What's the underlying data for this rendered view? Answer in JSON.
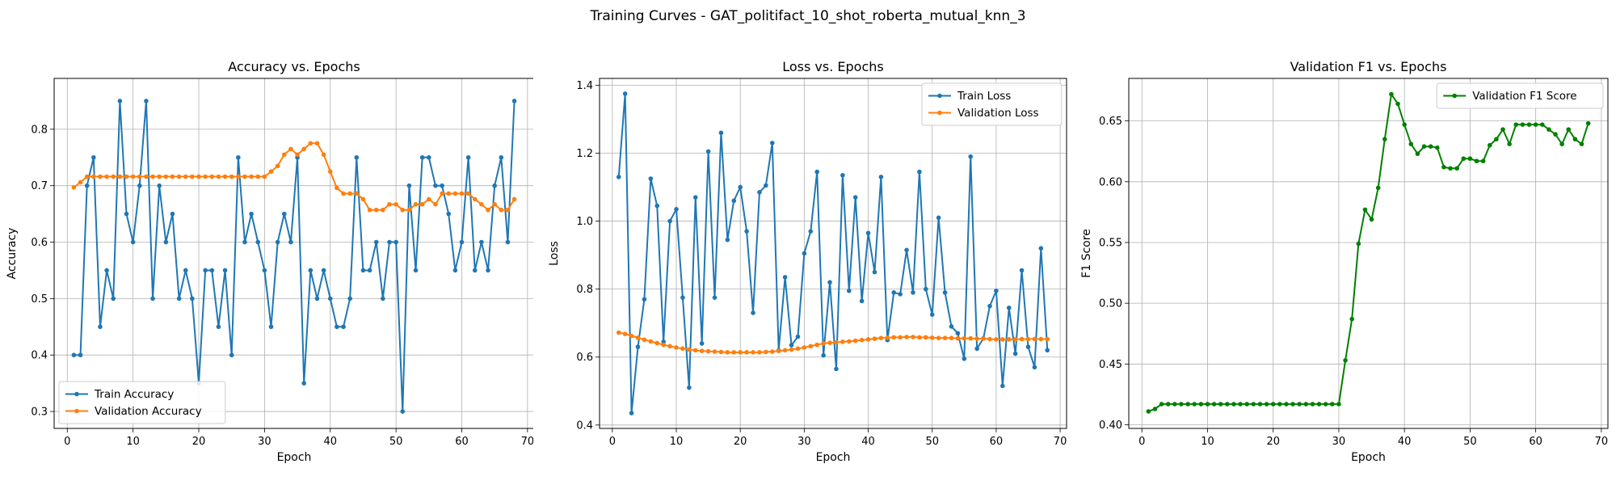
{
  "figure_title": "Training Curves - GAT_politifact_10_shot_roberta_mutual_knn_3",
  "chart_data": [
    {
      "type": "line",
      "title": "Accuracy vs. Epochs",
      "xlabel": "Epoch",
      "ylabel": "Accuracy",
      "xlim": [
        -2,
        71
      ],
      "ylim": [
        0.27,
        0.89
      ],
      "xticks": [
        0,
        10,
        20,
        30,
        40,
        50,
        60,
        70
      ],
      "yticks": [
        0.3,
        0.4,
        0.5,
        0.6,
        0.7,
        0.8
      ],
      "tick_decimals": 1,
      "grid": true,
      "legend_position": "lower-left",
      "x": [
        1,
        2,
        3,
        4,
        5,
        6,
        7,
        8,
        9,
        10,
        11,
        12,
        13,
        14,
        15,
        16,
        17,
        18,
        19,
        20,
        21,
        22,
        23,
        24,
        25,
        26,
        27,
        28,
        29,
        30,
        31,
        32,
        33,
        34,
        35,
        36,
        37,
        38,
        39,
        40,
        41,
        42,
        43,
        44,
        45,
        46,
        47,
        48,
        49,
        50,
        51,
        52,
        53,
        54,
        55,
        56,
        57,
        58,
        59,
        60,
        61,
        62,
        63,
        64,
        65,
        66,
        67,
        68
      ],
      "series": [
        {
          "name": "Train Accuracy",
          "color": "#1f77b4",
          "values": [
            0.4,
            0.4,
            0.7,
            0.75,
            0.45,
            0.55,
            0.5,
            0.85,
            0.65,
            0.6,
            0.7,
            0.85,
            0.5,
            0.7,
            0.6,
            0.65,
            0.5,
            0.55,
            0.5,
            0.35,
            0.55,
            0.55,
            0.45,
            0.55,
            0.4,
            0.75,
            0.6,
            0.65,
            0.6,
            0.55,
            0.45,
            0.6,
            0.65,
            0.6,
            0.75,
            0.35,
            0.55,
            0.5,
            0.55,
            0.5,
            0.45,
            0.45,
            0.5,
            0.75,
            0.55,
            0.55,
            0.6,
            0.5,
            0.6,
            0.6,
            0.3,
            0.7,
            0.55,
            0.75,
            0.75,
            0.7,
            0.7,
            0.65,
            0.55,
            0.6,
            0.75,
            0.55,
            0.6,
            0.55,
            0.7,
            0.75,
            0.6,
            0.85
          ]
        },
        {
          "name": "Validation Accuracy",
          "color": "#ff7f0e",
          "values": [
            0.697,
            0.706,
            0.716,
            0.716,
            0.716,
            0.716,
            0.716,
            0.716,
            0.716,
            0.716,
            0.716,
            0.716,
            0.716,
            0.716,
            0.716,
            0.716,
            0.716,
            0.716,
            0.716,
            0.716,
            0.716,
            0.716,
            0.716,
            0.716,
            0.716,
            0.716,
            0.716,
            0.716,
            0.716,
            0.716,
            0.725,
            0.735,
            0.755,
            0.765,
            0.755,
            0.765,
            0.775,
            0.775,
            0.755,
            0.725,
            0.696,
            0.686,
            0.686,
            0.686,
            0.676,
            0.657,
            0.657,
            0.657,
            0.667,
            0.667,
            0.657,
            0.657,
            0.667,
            0.667,
            0.676,
            0.667,
            0.686,
            0.686,
            0.686,
            0.686,
            0.686,
            0.676,
            0.667,
            0.657,
            0.667,
            0.657,
            0.657,
            0.676
          ]
        }
      ]
    },
    {
      "type": "line",
      "title": "Loss vs. Epochs",
      "xlabel": "Epoch",
      "ylabel": "Loss",
      "xlim": [
        -2,
        71
      ],
      "ylim": [
        0.39,
        1.42
      ],
      "xticks": [
        0,
        10,
        20,
        30,
        40,
        50,
        60,
        70
      ],
      "yticks": [
        0.4,
        0.6,
        0.8,
        1.0,
        1.2,
        1.4
      ],
      "tick_decimals": 1,
      "grid": true,
      "legend_position": "upper-right",
      "x": [
        1,
        2,
        3,
        4,
        5,
        6,
        7,
        8,
        9,
        10,
        11,
        12,
        13,
        14,
        15,
        16,
        17,
        18,
        19,
        20,
        21,
        22,
        23,
        24,
        25,
        26,
        27,
        28,
        29,
        30,
        31,
        32,
        33,
        34,
        35,
        36,
        37,
        38,
        39,
        40,
        41,
        42,
        43,
        44,
        45,
        46,
        47,
        48,
        49,
        50,
        51,
        52,
        53,
        54,
        55,
        56,
        57,
        58,
        59,
        60,
        61,
        62,
        63,
        64,
        65,
        66,
        67,
        68
      ],
      "series": [
        {
          "name": "Train Loss",
          "color": "#1f77b4",
          "values": [
            1.13,
            1.375,
            0.435,
            0.63,
            0.77,
            1.125,
            1.045,
            0.645,
            1.0,
            1.035,
            0.775,
            0.51,
            1.07,
            0.64,
            1.205,
            0.775,
            1.26,
            0.945,
            1.06,
            1.1,
            0.97,
            0.73,
            1.085,
            1.105,
            1.23,
            0.62,
            0.835,
            0.635,
            0.66,
            0.905,
            0.97,
            1.145,
            0.605,
            0.82,
            0.565,
            1.135,
            0.795,
            1.07,
            0.765,
            0.965,
            0.85,
            1.13,
            0.65,
            0.79,
            0.785,
            0.915,
            0.79,
            1.145,
            0.8,
            0.725,
            1.01,
            0.79,
            0.69,
            0.67,
            0.595,
            1.19,
            0.625,
            0.655,
            0.75,
            0.795,
            0.515,
            0.745,
            0.61,
            0.855,
            0.63,
            0.57,
            0.92,
            0.62
          ]
        },
        {
          "name": "Validation Loss",
          "color": "#ff7f0e",
          "values": [
            0.672,
            0.668,
            0.662,
            0.657,
            0.651,
            0.646,
            0.641,
            0.636,
            0.632,
            0.628,
            0.625,
            0.622,
            0.62,
            0.618,
            0.617,
            0.616,
            0.615,
            0.614,
            0.614,
            0.614,
            0.614,
            0.614,
            0.614,
            0.615,
            0.616,
            0.618,
            0.62,
            0.622,
            0.625,
            0.628,
            0.632,
            0.636,
            0.64,
            0.642,
            0.643,
            0.645,
            0.646,
            0.648,
            0.65,
            0.652,
            0.654,
            0.656,
            0.657,
            0.658,
            0.658,
            0.659,
            0.659,
            0.658,
            0.658,
            0.657,
            0.656,
            0.656,
            0.656,
            0.655,
            0.655,
            0.655,
            0.654,
            0.654,
            0.653,
            0.652,
            0.652,
            0.652,
            0.652,
            0.653,
            0.653,
            0.653,
            0.653,
            0.653
          ]
        }
      ]
    },
    {
      "type": "line",
      "title": "Validation F1 vs. Epochs",
      "xlabel": "Epoch",
      "ylabel": "F1 Score",
      "xlim": [
        -2,
        71
      ],
      "ylim": [
        0.397,
        0.685
      ],
      "xticks": [
        0,
        10,
        20,
        30,
        40,
        50,
        60,
        70
      ],
      "yticks": [
        0.4,
        0.45,
        0.5,
        0.55,
        0.6,
        0.65
      ],
      "tick_decimals": 2,
      "grid": true,
      "legend_position": "upper-right",
      "x": [
        1,
        2,
        3,
        4,
        5,
        6,
        7,
        8,
        9,
        10,
        11,
        12,
        13,
        14,
        15,
        16,
        17,
        18,
        19,
        20,
        21,
        22,
        23,
        24,
        25,
        26,
        27,
        28,
        29,
        30,
        31,
        32,
        33,
        34,
        35,
        36,
        37,
        38,
        39,
        40,
        41,
        42,
        43,
        44,
        45,
        46,
        47,
        48,
        49,
        50,
        51,
        52,
        53,
        54,
        55,
        56,
        57,
        58,
        59,
        60,
        61,
        62,
        63,
        64,
        65,
        66,
        67,
        68
      ],
      "series": [
        {
          "name": "Validation F1 Score",
          "color": "#008000",
          "values": [
            0.411,
            0.413,
            0.417,
            0.417,
            0.417,
            0.417,
            0.417,
            0.417,
            0.417,
            0.417,
            0.417,
            0.417,
            0.417,
            0.417,
            0.417,
            0.417,
            0.417,
            0.417,
            0.417,
            0.417,
            0.417,
            0.417,
            0.417,
            0.417,
            0.417,
            0.417,
            0.417,
            0.417,
            0.417,
            0.417,
            0.453,
            0.487,
            0.549,
            0.577,
            0.569,
            0.595,
            0.635,
            0.672,
            0.664,
            0.647,
            0.631,
            0.623,
            0.629,
            0.629,
            0.628,
            0.612,
            0.611,
            0.611,
            0.619,
            0.619,
            0.617,
            0.617,
            0.63,
            0.635,
            0.643,
            0.631,
            0.647,
            0.647,
            0.647,
            0.647,
            0.647,
            0.643,
            0.639,
            0.631,
            0.643,
            0.635,
            0.631,
            0.648
          ]
        }
      ]
    }
  ]
}
